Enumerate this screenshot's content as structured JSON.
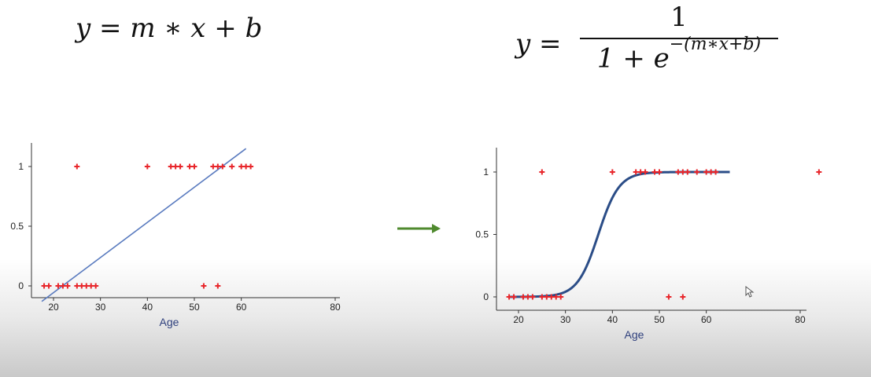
{
  "formulas": {
    "linear": {
      "lhs": "y",
      "equals": "=",
      "rhs": "m ∗ x + b"
    },
    "sigmoid": {
      "lhs": "y",
      "equals": "=",
      "numerator": "1",
      "denominator_base": "1 + e",
      "exponent": "−(m∗x+b)"
    }
  },
  "colors": {
    "points": "#e8262b",
    "linear_line": "#5a7bbf",
    "sigmoid_curve": "#2b4d87",
    "arrow": "#4f8a2e",
    "axis_label": "#2e3f7c",
    "axis": "#333333"
  },
  "icons": {
    "arrow": "right-arrow-icon",
    "cursor": "mouse-cursor-icon"
  },
  "chart_data": [
    {
      "type": "scatter",
      "title": "",
      "xlabel": "Age",
      "ylabel": "",
      "xlim": [
        16,
        82
      ],
      "ylim": [
        -0.13,
        1.2
      ],
      "xticks": [
        "20",
        "30",
        "40",
        "50",
        "60",
        "80"
      ],
      "xtick_values": [
        20,
        30,
        40,
        50,
        60,
        80
      ],
      "yticks": [
        "0",
        "0.5",
        "1"
      ],
      "ytick_values": [
        0,
        0.5,
        1
      ],
      "points": [
        {
          "x": 18,
          "y": 0
        },
        {
          "x": 19,
          "y": 0
        },
        {
          "x": 21,
          "y": 0
        },
        {
          "x": 22,
          "y": 0
        },
        {
          "x": 23,
          "y": 0
        },
        {
          "x": 25,
          "y": 0
        },
        {
          "x": 26,
          "y": 0
        },
        {
          "x": 27,
          "y": 0
        },
        {
          "x": 28,
          "y": 0
        },
        {
          "x": 29,
          "y": 0
        },
        {
          "x": 52,
          "y": 0
        },
        {
          "x": 55,
          "y": 0
        },
        {
          "x": 25,
          "y": 1
        },
        {
          "x": 40,
          "y": 1
        },
        {
          "x": 45,
          "y": 1
        },
        {
          "x": 46,
          "y": 1
        },
        {
          "x": 47,
          "y": 1
        },
        {
          "x": 49,
          "y": 1
        },
        {
          "x": 50,
          "y": 1
        },
        {
          "x": 54,
          "y": 1
        },
        {
          "x": 55,
          "y": 1
        },
        {
          "x": 56,
          "y": 1
        },
        {
          "x": 58,
          "y": 1
        },
        {
          "x": 60,
          "y": 1
        },
        {
          "x": 61,
          "y": 1
        },
        {
          "x": 62,
          "y": 1
        }
      ],
      "fit": {
        "type": "linear",
        "from": [
          17.5,
          -0.13
        ],
        "to": [
          61,
          1.15
        ]
      }
    },
    {
      "type": "scatter",
      "title": "",
      "xlabel": "Age",
      "ylabel": "",
      "xlim": [
        16,
        84
      ],
      "ylim": [
        -0.08,
        1.2
      ],
      "xticks": [
        "20",
        "30",
        "40",
        "50",
        "60",
        "80"
      ],
      "xtick_values": [
        20,
        30,
        40,
        50,
        60,
        80
      ],
      "yticks": [
        "0",
        "0.5",
        "1"
      ],
      "ytick_values": [
        0,
        0.5,
        1
      ],
      "points": [
        {
          "x": 18,
          "y": 0
        },
        {
          "x": 19,
          "y": 0
        },
        {
          "x": 21,
          "y": 0
        },
        {
          "x": 22,
          "y": 0
        },
        {
          "x": 23,
          "y": 0
        },
        {
          "x": 25,
          "y": 0
        },
        {
          "x": 26,
          "y": 0
        },
        {
          "x": 27,
          "y": 0
        },
        {
          "x": 28,
          "y": 0
        },
        {
          "x": 29,
          "y": 0
        },
        {
          "x": 52,
          "y": 0
        },
        {
          "x": 55,
          "y": 0
        },
        {
          "x": 25,
          "y": 1
        },
        {
          "x": 40,
          "y": 1
        },
        {
          "x": 45,
          "y": 1
        },
        {
          "x": 46,
          "y": 1
        },
        {
          "x": 47,
          "y": 1
        },
        {
          "x": 49,
          "y": 1
        },
        {
          "x": 50,
          "y": 1
        },
        {
          "x": 54,
          "y": 1
        },
        {
          "x": 55,
          "y": 1
        },
        {
          "x": 56,
          "y": 1
        },
        {
          "x": 58,
          "y": 1
        },
        {
          "x": 60,
          "y": 1
        },
        {
          "x": 61,
          "y": 1
        },
        {
          "x": 62,
          "y": 1
        },
        {
          "x": 84,
          "y": 1
        }
      ],
      "fit": {
        "type": "sigmoid",
        "midpoint": 37,
        "rate": 0.45,
        "x_range": [
          18,
          65
        ]
      }
    }
  ]
}
